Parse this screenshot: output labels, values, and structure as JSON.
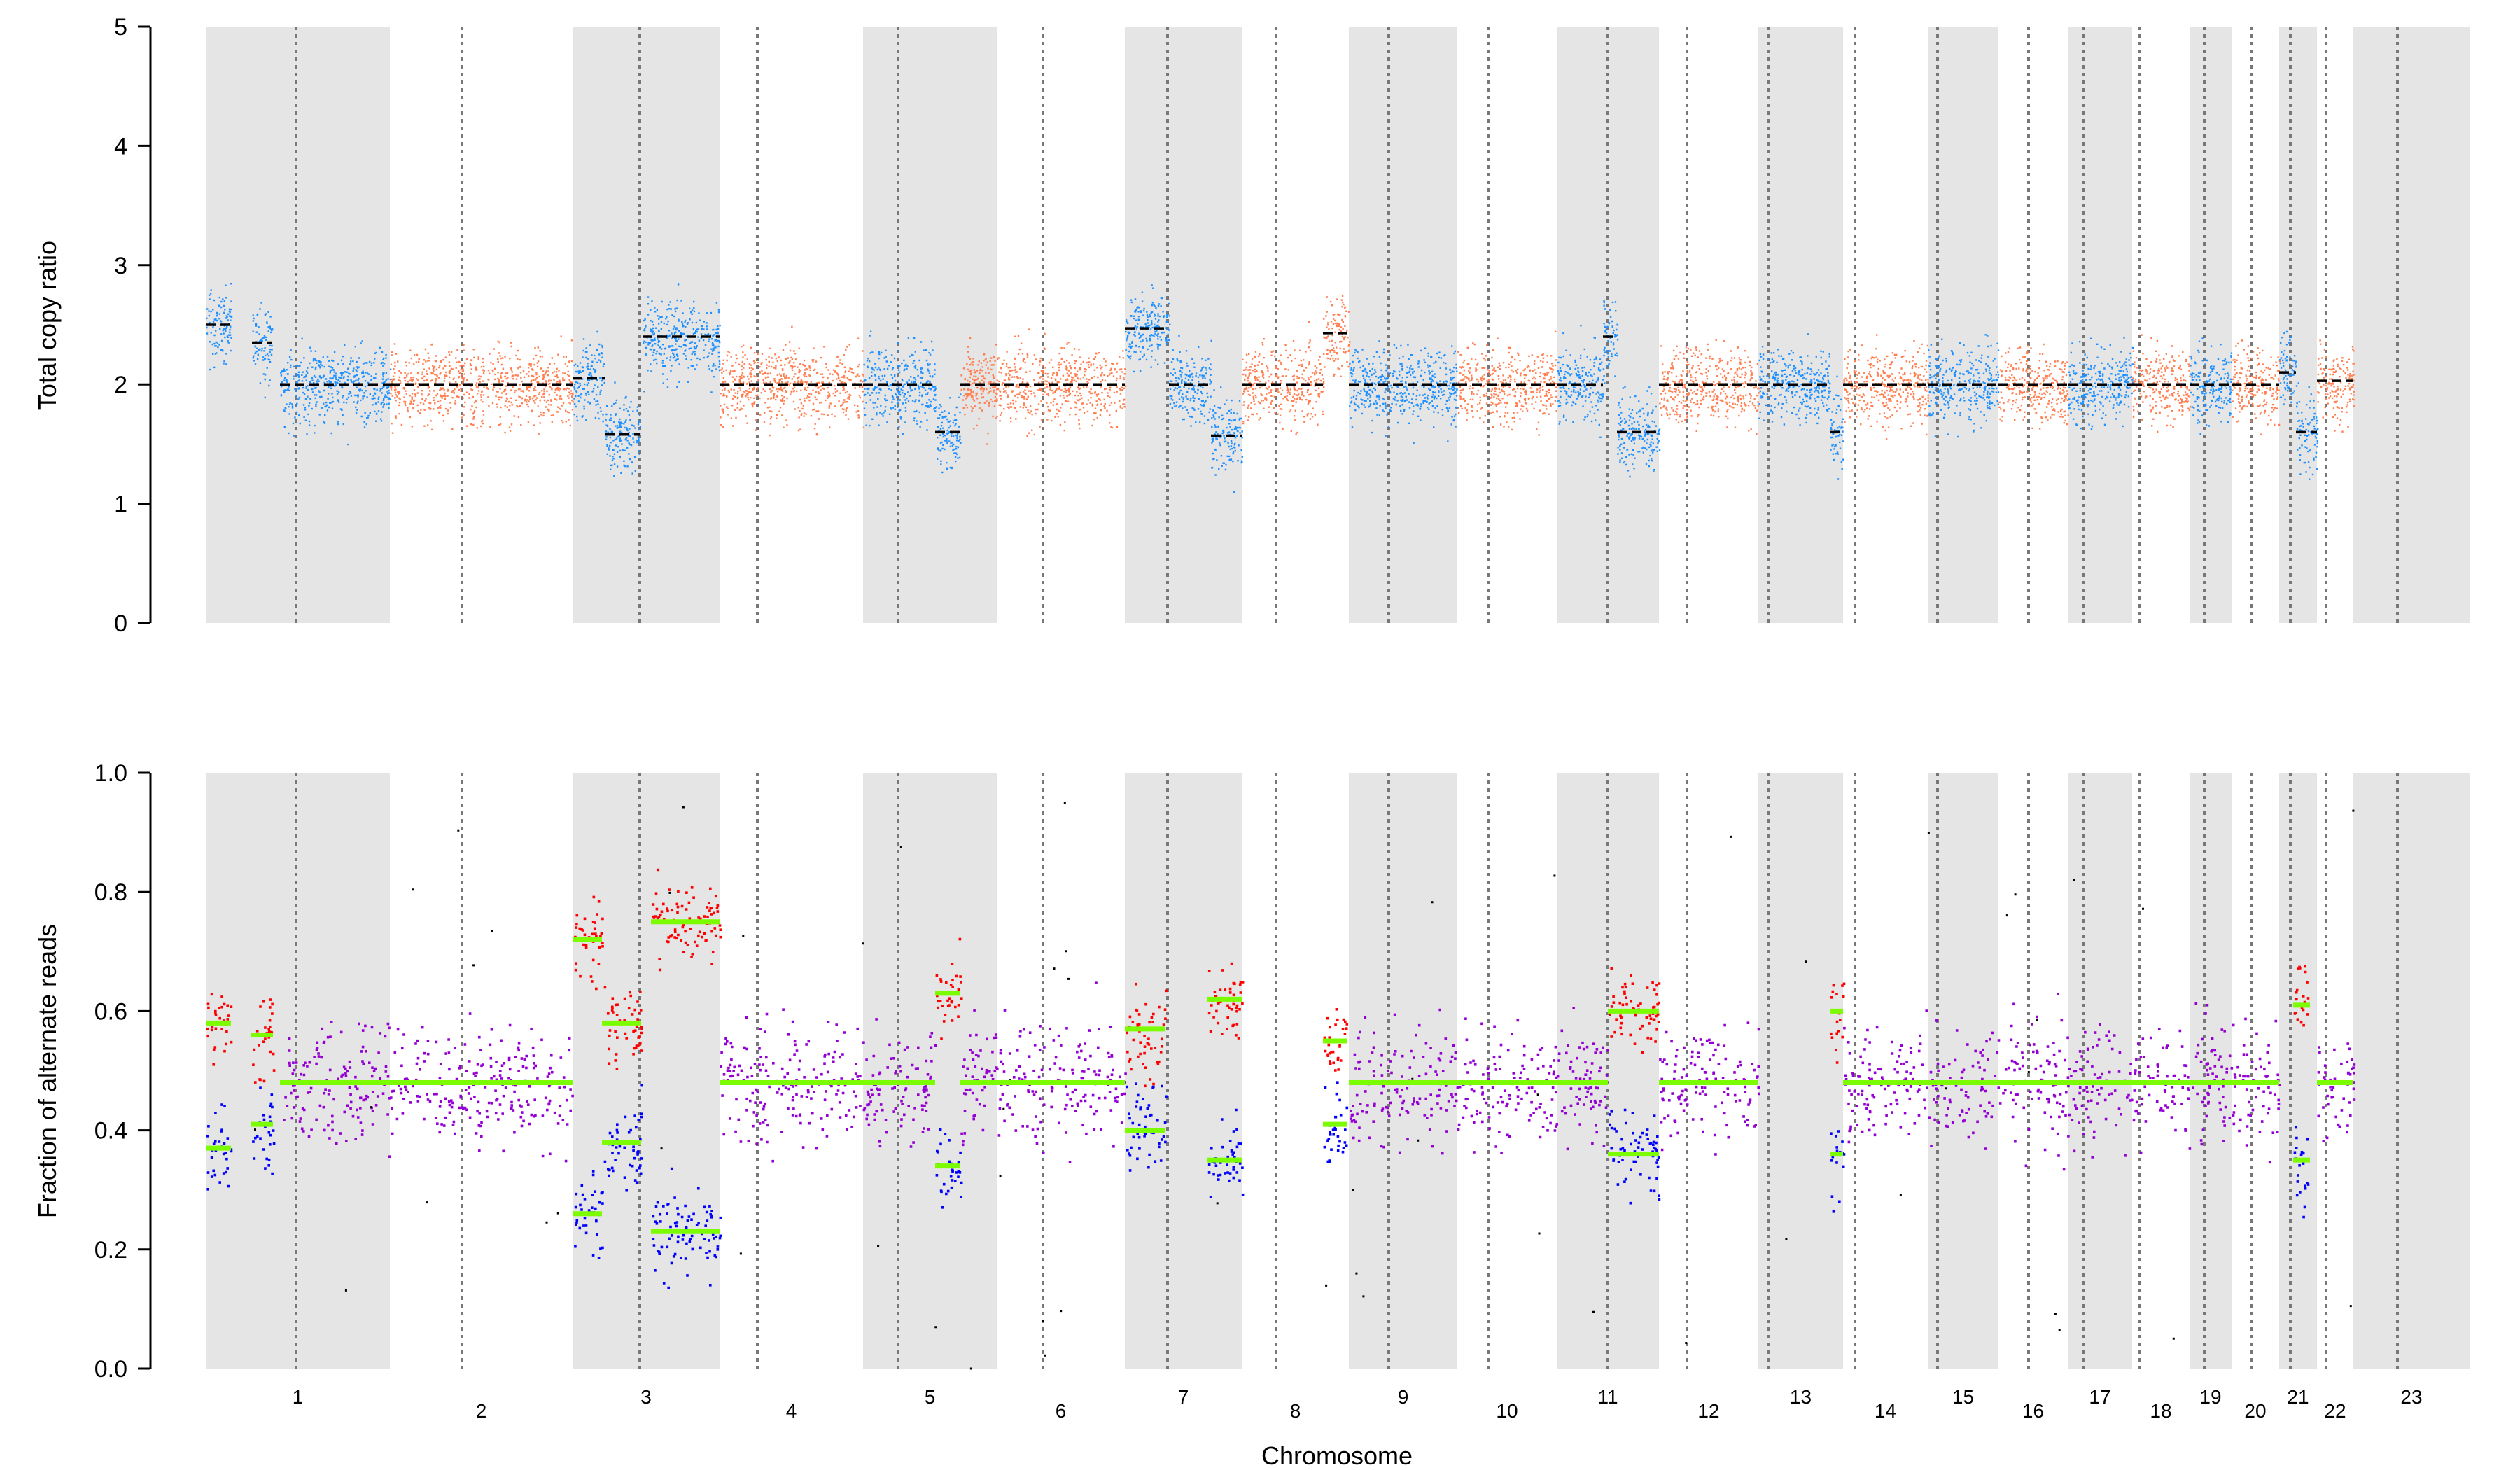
{
  "chart_data": [
    {
      "type": "scatter",
      "ylabel": "Total copy ratio",
      "ylim": [
        0,
        5
      ],
      "yticks": [
        "0",
        "1",
        "2",
        "3",
        "4",
        "5"
      ],
      "point_colors": {
        "alternating_a": "#1e90ff",
        "alternating_b": "#ff7f50"
      },
      "segment_color": "#000000",
      "segments": [
        {
          "chr": "1",
          "value": 2.5
        },
        {
          "chr": "1",
          "value": 2.35
        },
        {
          "chr": "1",
          "value": 2.0
        },
        {
          "chr": "2",
          "value": 2.0
        },
        {
          "chr": "3",
          "value": 2.05
        },
        {
          "chr": "3",
          "value": 1.58
        },
        {
          "chr": "3",
          "value": 2.4
        },
        {
          "chr": "4",
          "value": 2.0
        },
        {
          "chr": "5",
          "value": 2.0
        },
        {
          "chr": "5",
          "value": 1.6
        },
        {
          "chr": "6",
          "value": 2.0
        },
        {
          "chr": "7",
          "value": 2.47
        },
        {
          "chr": "7",
          "value": 2.0
        },
        {
          "chr": "7",
          "value": 1.57
        },
        {
          "chr": "8",
          "value": 2.0
        },
        {
          "chr": "8",
          "value": 2.43
        },
        {
          "chr": "9",
          "value": 2.0
        },
        {
          "chr": "10",
          "value": 2.0
        },
        {
          "chr": "11",
          "value": 2.0
        },
        {
          "chr": "11",
          "value": 2.4
        },
        {
          "chr": "11",
          "value": 1.6
        },
        {
          "chr": "12",
          "value": 2.0
        },
        {
          "chr": "13",
          "value": 2.0
        },
        {
          "chr": "13",
          "value": 1.6
        },
        {
          "chr": "14",
          "value": 2.0
        },
        {
          "chr": "15",
          "value": 2.0
        },
        {
          "chr": "16",
          "value": 2.0
        },
        {
          "chr": "17",
          "value": 2.0
        },
        {
          "chr": "18",
          "value": 2.0
        },
        {
          "chr": "19",
          "value": 2.0
        },
        {
          "chr": "20",
          "value": 2.0
        },
        {
          "chr": "21",
          "value": 2.1
        },
        {
          "chr": "21",
          "value": 1.6
        },
        {
          "chr": "22",
          "value": 2.03
        }
      ]
    },
    {
      "type": "scatter",
      "ylabel": "Fraction of alternate reads",
      "xlabel": "Chromosome",
      "ylim": [
        0,
        1
      ],
      "yticks": [
        "0.0",
        "0.2",
        "0.4",
        "0.6",
        "0.8",
        "1.0"
      ],
      "point_colors": {
        "balanced": "#9400d3",
        "major_allele": "#ff0000",
        "minor_allele": "#0000ff",
        "other": "#000000"
      },
      "segment_color": "#7cfc00",
      "allele_fraction_segments": [
        {
          "chr": "1",
          "upper": 0.58,
          "lower": 0.37
        },
        {
          "chr": "1",
          "upper": 0.56,
          "lower": 0.41
        },
        {
          "chr": "1-2",
          "value": 0.48
        },
        {
          "chr": "3",
          "upper": 0.72,
          "lower": 0.26
        },
        {
          "chr": "3",
          "upper": 0.58,
          "lower": 0.38
        },
        {
          "chr": "3",
          "upper": 0.75,
          "lower": 0.23
        },
        {
          "chr": "4-5",
          "value": 0.48
        },
        {
          "chr": "5",
          "upper": 0.63,
          "lower": 0.34
        },
        {
          "chr": "6",
          "value": 0.48
        },
        {
          "chr": "7",
          "upper": 0.57,
          "lower": 0.4
        },
        {
          "chr": "7",
          "upper": 0.62,
          "lower": 0.35
        },
        {
          "chr": "8",
          "upper": 0.55,
          "lower": 0.41
        },
        {
          "chr": "9-11",
          "value": 0.48
        },
        {
          "chr": "11",
          "upper": 0.6,
          "lower": 0.36
        },
        {
          "chr": "12-13",
          "value": 0.48
        },
        {
          "chr": "13",
          "upper": 0.6,
          "lower": 0.36
        },
        {
          "chr": "14-20",
          "value": 0.48
        },
        {
          "chr": "21",
          "upper": 0.61,
          "lower": 0.35
        },
        {
          "chr": "22",
          "value": 0.48
        }
      ]
    }
  ],
  "chromosomes": [
    "1",
    "2",
    "3",
    "4",
    "5",
    "6",
    "7",
    "8",
    "9",
    "10",
    "11",
    "12",
    "13",
    "14",
    "15",
    "16",
    "17",
    "18",
    "19",
    "20",
    "21",
    "22",
    "23"
  ],
  "shading": {
    "band_color": "#e5e5e5",
    "centromere_color": "#777777"
  }
}
